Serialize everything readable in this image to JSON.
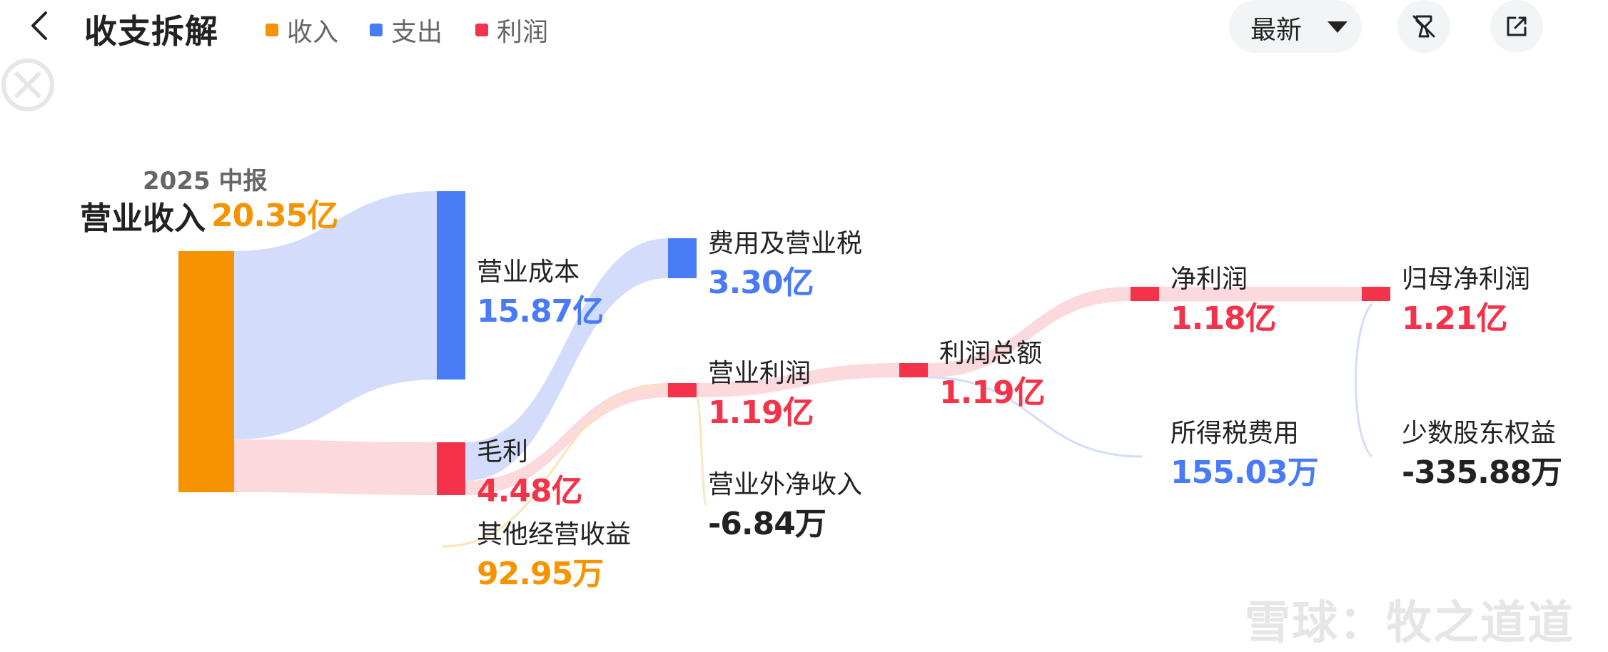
{
  "header": {
    "title": "收支拆解",
    "legend": [
      {
        "label": "收入",
        "color": "#f59400"
      },
      {
        "label": "支出",
        "color": "#4a7bf7"
      },
      {
        "label": "利润",
        "color": "#f2334a"
      }
    ],
    "period_select": {
      "label": "最新"
    },
    "icons": {
      "back": "chevron-left-icon",
      "clear": "brush-icon",
      "expand": "external-link-icon"
    }
  },
  "chart_data": {
    "type": "sankey",
    "period": "2025 中报",
    "colors": {
      "income": "#f59400",
      "expense": "#4a7bf7",
      "profit": "#f2334a",
      "neutral": "#222222"
    },
    "nodes": [
      {
        "id": "revenue",
        "label": "营业收入",
        "value": "20.35亿",
        "amount_yi": 20.35,
        "kind": "income"
      },
      {
        "id": "cost",
        "label": "营业成本",
        "value": "15.87亿",
        "amount_yi": 15.87,
        "kind": "expense"
      },
      {
        "id": "gross",
        "label": "毛利",
        "value": "4.48亿",
        "amount_yi": 4.48,
        "kind": "profit"
      },
      {
        "id": "other_op",
        "label": "其他经营收益",
        "value": "92.95万",
        "amount_yi": 0.009295,
        "kind": "income"
      },
      {
        "id": "fees",
        "label": "费用及营业税",
        "value": "3.30亿",
        "amount_yi": 3.3,
        "kind": "expense"
      },
      {
        "id": "op_profit",
        "label": "营业利润",
        "value": "1.19亿",
        "amount_yi": 1.19,
        "kind": "profit"
      },
      {
        "id": "non_op",
        "label": "营业外净收入",
        "value": "-6.84万",
        "amount_yi": -0.000684,
        "kind": "neutral"
      },
      {
        "id": "total_profit",
        "label": "利润总额",
        "value": "1.19亿",
        "amount_yi": 1.19,
        "kind": "profit"
      },
      {
        "id": "net_profit",
        "label": "净利润",
        "value": "1.18亿",
        "amount_yi": 1.18,
        "kind": "profit"
      },
      {
        "id": "tax",
        "label": "所得税费用",
        "value": "155.03万",
        "amount_yi": 0.015503,
        "kind": "expense"
      },
      {
        "id": "parent_np",
        "label": "归母净利润",
        "value": "1.21亿",
        "amount_yi": 1.21,
        "kind": "profit"
      },
      {
        "id": "minority",
        "label": "少数股东权益",
        "value": "-335.88万",
        "amount_yi": -0.033588,
        "kind": "neutral"
      }
    ],
    "links": [
      {
        "source": "revenue",
        "target": "cost"
      },
      {
        "source": "revenue",
        "target": "gross"
      },
      {
        "source": "gross",
        "target": "fees"
      },
      {
        "source": "gross",
        "target": "op_profit"
      },
      {
        "source": "other_op",
        "target": "op_profit"
      },
      {
        "source": "non_op",
        "target": "op_profit"
      },
      {
        "source": "op_profit",
        "target": "total_profit"
      },
      {
        "source": "total_profit",
        "target": "net_profit"
      },
      {
        "source": "total_profit",
        "target": "tax"
      },
      {
        "source": "net_profit",
        "target": "parent_np"
      },
      {
        "source": "minority",
        "target": "parent_np"
      }
    ]
  },
  "watermark": "雪球：牧之道道"
}
